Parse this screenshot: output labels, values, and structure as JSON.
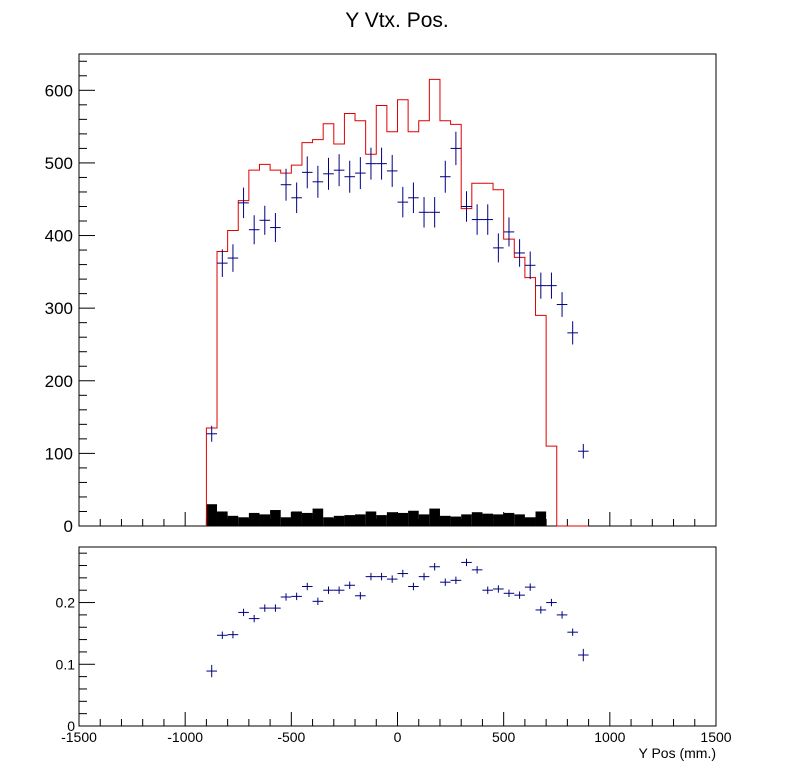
{
  "chart_data": [
    {
      "type": "histogram",
      "title": "Y Vtx. Pos.",
      "xlabel": "",
      "ylabel": "",
      "xlim": [
        -1500,
        1500
      ],
      "ylim": [
        0,
        650
      ],
      "xticks": [],
      "yticks": [
        "0",
        "100",
        "200",
        "300",
        "400",
        "500",
        "600"
      ],
      "bin_edges": [
        -900,
        -850,
        -800,
        -750,
        -700,
        -650,
        -600,
        -550,
        -500,
        -450,
        -400,
        -350,
        -300,
        -250,
        -200,
        -150,
        -100,
        -50,
        0,
        50,
        100,
        150,
        200,
        250,
        300,
        350,
        400,
        450,
        500,
        550,
        600,
        650,
        700,
        750,
        800,
        850,
        900
      ],
      "series": [
        {
          "name": "",
          "kind": "step-line",
          "color": "#e00000",
          "values": [
            135,
            378,
            407,
            448,
            490,
            498,
            490,
            486,
            497,
            528,
            532,
            554,
            526,
            568,
            558,
            512,
            579,
            543,
            587,
            543,
            558,
            615,
            558,
            553,
            437,
            472,
            472,
            463,
            395,
            370,
            342,
            290,
            110,
            0,
            0,
            0
          ]
        },
        {
          "name": "",
          "kind": "filled-bars",
          "color": "#000000",
          "values": [
            30,
            20,
            14,
            12,
            18,
            16,
            22,
            12,
            20,
            18,
            24,
            12,
            14,
            15,
            16,
            20,
            15,
            19,
            18,
            21,
            16,
            24,
            14,
            13,
            16,
            19,
            17,
            16,
            18,
            16,
            12,
            20,
            0,
            0,
            0,
            0
          ]
        },
        {
          "name": "",
          "kind": "error-points",
          "color": "#000080",
          "x": [
            -875,
            -825,
            -775,
            -725,
            -675,
            -625,
            -575,
            -525,
            -475,
            -425,
            -375,
            -325,
            -275,
            -225,
            -175,
            -125,
            -75,
            -25,
            25,
            75,
            125,
            175,
            225,
            275,
            325,
            375,
            425,
            475,
            525,
            575,
            625,
            675,
            725,
            775,
            825,
            875
          ],
          "y": [
            127,
            362,
            369,
            445,
            408,
            421,
            411,
            470,
            452,
            487,
            474,
            485,
            490,
            481,
            486,
            499,
            499,
            489,
            446,
            452,
            432,
            432,
            481,
            520,
            440,
            422,
            422,
            383,
            405,
            376,
            359,
            331,
            331,
            305,
            266,
            103
          ],
          "yerr": [
            11,
            19,
            19,
            21,
            20,
            20,
            20,
            22,
            21,
            22,
            22,
            22,
            22,
            22,
            22,
            22,
            22,
            22,
            21,
            21,
            21,
            21,
            22,
            23,
            21,
            21,
            21,
            20,
            20,
            19,
            19,
            18,
            18,
            17,
            16,
            10
          ]
        }
      ]
    },
    {
      "type": "scatter",
      "title": "",
      "xlabel": "Y Pos (mm.)",
      "ylabel": "",
      "xlim": [
        -1500,
        1500
      ],
      "ylim": [
        0,
        0.29
      ],
      "xticks": [
        "-1500",
        "-1000",
        "-500",
        "0",
        "500",
        "1000",
        "1500"
      ],
      "yticks": [
        "0",
        "0.1",
        "0.2"
      ],
      "series": [
        {
          "name": "",
          "color": "#000080",
          "x": [
            -875,
            -825,
            -775,
            -725,
            -675,
            -625,
            -575,
            -525,
            -475,
            -425,
            -375,
            -325,
            -275,
            -225,
            -175,
            -125,
            -75,
            -25,
            25,
            75,
            125,
            175,
            225,
            275,
            325,
            375,
            425,
            475,
            525,
            575,
            625,
            675,
            725,
            775,
            825,
            875
          ],
          "y": [
            0.089,
            0.147,
            0.148,
            0.184,
            0.174,
            0.191,
            0.191,
            0.209,
            0.21,
            0.226,
            0.202,
            0.22,
            0.22,
            0.228,
            0.211,
            0.242,
            0.242,
            0.238,
            0.247,
            0.226,
            0.242,
            0.258,
            0.233,
            0.236,
            0.265,
            0.253,
            0.22,
            0.222,
            0.215,
            0.212,
            0.225,
            0.188,
            0.2,
            0.18,
            0.152,
            0.115
          ],
          "yerr": [
            0.01,
            0.006,
            0.006,
            0.006,
            0.006,
            0.006,
            0.006,
            0.006,
            0.006,
            0.006,
            0.006,
            0.006,
            0.006,
            0.006,
            0.006,
            0.006,
            0.006,
            0.006,
            0.006,
            0.006,
            0.006,
            0.006,
            0.006,
            0.006,
            0.006,
            0.006,
            0.006,
            0.006,
            0.006,
            0.006,
            0.006,
            0.006,
            0.006,
            0.006,
            0.006,
            0.01
          ]
        }
      ]
    }
  ]
}
